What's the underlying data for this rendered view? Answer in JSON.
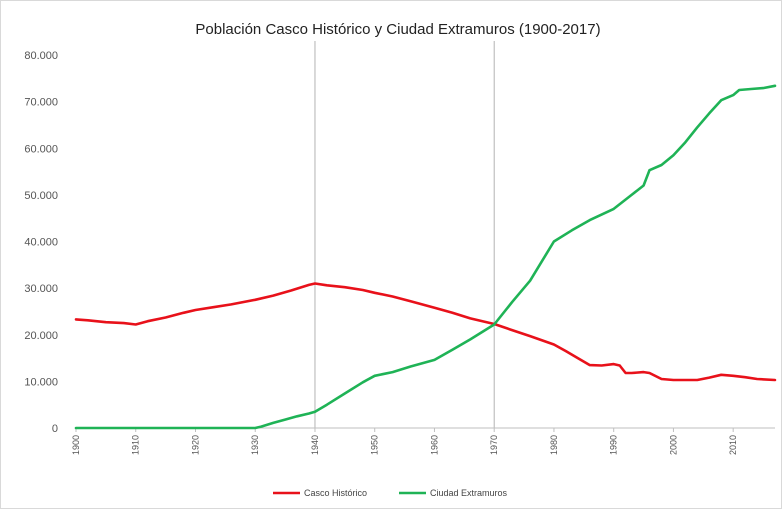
{
  "chart_data": {
    "type": "line",
    "title": "Población Casco Histórico y Ciudad Extramuros (1900-2017)",
    "xlabel": "",
    "ylabel": "",
    "xlim": [
      1900,
      2017
    ],
    "ylim": [
      0,
      80000
    ],
    "grid": false,
    "legend_position": "bottom",
    "y_ticks": [
      {
        "value": 0,
        "label": "0"
      },
      {
        "value": 10000,
        "label": "10.000"
      },
      {
        "value": 20000,
        "label": "20.000"
      },
      {
        "value": 30000,
        "label": "30.000"
      },
      {
        "value": 40000,
        "label": "40.000"
      },
      {
        "value": 50000,
        "label": "50.000"
      },
      {
        "value": 60000,
        "label": "60.000"
      },
      {
        "value": 70000,
        "label": "70.000"
      },
      {
        "value": 80000,
        "label": "80.000"
      }
    ],
    "x_ticks": [
      {
        "value": 1900,
        "label": "1900"
      },
      {
        "value": 1910,
        "label": "1910"
      },
      {
        "value": 1920,
        "label": "1920"
      },
      {
        "value": 1930,
        "label": "1930"
      },
      {
        "value": 1940,
        "label": "1940"
      },
      {
        "value": 1950,
        "label": "1950"
      },
      {
        "value": 1960,
        "label": "1960"
      },
      {
        "value": 1970,
        "label": "1970"
      },
      {
        "value": 1980,
        "label": "1980"
      },
      {
        "value": 1990,
        "label": "1990"
      },
      {
        "value": 2000,
        "label": "2000"
      },
      {
        "value": 2010,
        "label": "2010"
      }
    ],
    "reference_lines_x": [
      1940,
      1970
    ],
    "series": [
      {
        "name": "Casco Histórico",
        "color": "#e8111a",
        "x": [
          1900,
          1902,
          1905,
          1908,
          1910,
          1912,
          1915,
          1918,
          1920,
          1923,
          1926,
          1930,
          1933,
          1936,
          1939,
          1940,
          1942,
          1945,
          1948,
          1950,
          1953,
          1956,
          1960,
          1963,
          1966,
          1970,
          1973,
          1976,
          1980,
          1982,
          1984,
          1986,
          1988,
          1990,
          1991,
          1992,
          1993,
          1995,
          1996,
          1998,
          2000,
          2002,
          2004,
          2006,
          2008,
          2010,
          2012,
          2014,
          2017
        ],
        "y": [
          23300,
          23100,
          22700,
          22500,
          22200,
          22900,
          23700,
          24700,
          25300,
          25900,
          26500,
          27500,
          28400,
          29500,
          30700,
          31000,
          30600,
          30200,
          29600,
          29000,
          28200,
          27200,
          25800,
          24700,
          23500,
          22300,
          21000,
          19700,
          17900,
          16500,
          15000,
          13500,
          13400,
          13700,
          13400,
          11800,
          11800,
          12000,
          11800,
          10500,
          10300,
          10300,
          10300,
          10800,
          11400,
          11200,
          10900,
          10500,
          10300
        ]
      },
      {
        "name": "Ciudad Extramuros",
        "color": "#1fb356",
        "x": [
          1900,
          1910,
          1920,
          1930,
          1931,
          1933,
          1935,
          1937,
          1939,
          1940,
          1942,
          1945,
          1948,
          1950,
          1953,
          1956,
          1960,
          1963,
          1966,
          1970,
          1973,
          1976,
          1980,
          1983,
          1986,
          1990,
          1993,
          1995,
          1996,
          1998,
          2000,
          2002,
          2004,
          2006,
          2008,
          2010,
          2011,
          2013,
          2015,
          2017
        ],
        "y": [
          0,
          0,
          0,
          0,
          300,
          1100,
          1800,
          2500,
          3100,
          3500,
          5000,
          7400,
          9800,
          11200,
          12000,
          13200,
          14600,
          16800,
          19000,
          22200,
          27000,
          31600,
          40000,
          42400,
          44600,
          47000,
          50000,
          52000,
          55300,
          56400,
          58500,
          61300,
          64500,
          67500,
          70300,
          71400,
          72500,
          72700,
          72900,
          73400
        ]
      }
    ]
  }
}
